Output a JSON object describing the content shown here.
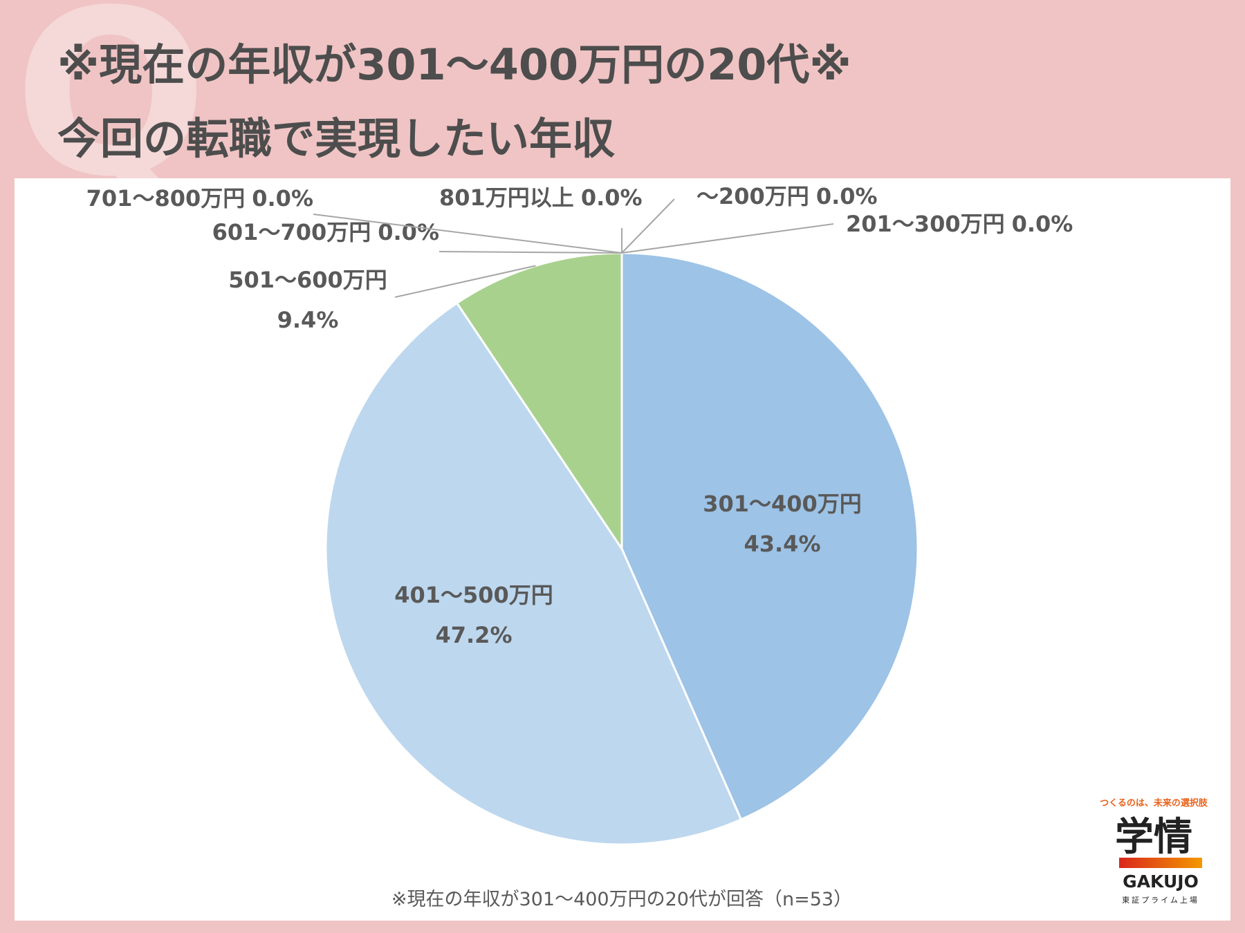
{
  "watermark": "Q",
  "title_lines": [
    "※現在の年収が301～400万円の20代※",
    "今回の転職で実現したい年収"
  ],
  "chart_data": {
    "type": "pie",
    "categories": [
      "～200万円",
      "201～300万円",
      "301～400万円",
      "401～500万円",
      "501～600万円",
      "601～700万円",
      "701～800万円",
      "801万円以上"
    ],
    "values": [
      0,
      0,
      43.4,
      47.2,
      9.4,
      0,
      0,
      0
    ],
    "value_labels": [
      "0.0%",
      "0.0%",
      "43.4%",
      "47.2%",
      "9.4%",
      "0.0%",
      "0.0%",
      "0.0%"
    ],
    "colors": [
      "#4472c4",
      "#ed7d31",
      "#9dc3e6",
      "#bdd7ee",
      "#a9d18e",
      "#ffc000",
      "#5b9bd5",
      "#70ad47"
    ],
    "note": "※現在の年収が301～400万円の20代が回答（n=53）"
  },
  "logo": {
    "tagline": "つくるのは、未来の選択肢",
    "name": "学情",
    "name_en": "GAKUJO",
    "listing": "東証プライム上場"
  }
}
